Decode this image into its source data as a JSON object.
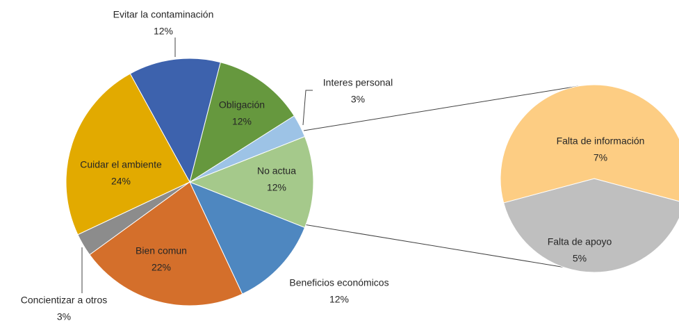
{
  "chart_data": {
    "type": "pie_of_pie",
    "categories": [
      "No actua",
      "Interes personal",
      "Obligación",
      "Evitar la contaminación",
      "Cuidar el ambiente",
      "Concientizar a otros",
      "Bien comun",
      "Beneficios económicos"
    ],
    "values": [
      12,
      3,
      12,
      12,
      24,
      3,
      22,
      12
    ],
    "value_labels": [
      "12%",
      "3%",
      "12%",
      "12%",
      "24%",
      "3%",
      "22%",
      "12%"
    ],
    "colors": [
      "#a5c98b",
      "#9dc3e6",
      "#66983e",
      "#3d62ad",
      "#e2aa00",
      "#8c8c8c",
      "#d46f2b",
      "#4e87c0"
    ],
    "secondary": {
      "categories": [
        "Falta de apoyo",
        "Falta de información"
      ],
      "values": [
        5,
        7
      ],
      "value_labels": [
        "5%",
        "7%"
      ],
      "colors": [
        "#bfbfbf",
        "#fdcd83"
      ]
    }
  }
}
